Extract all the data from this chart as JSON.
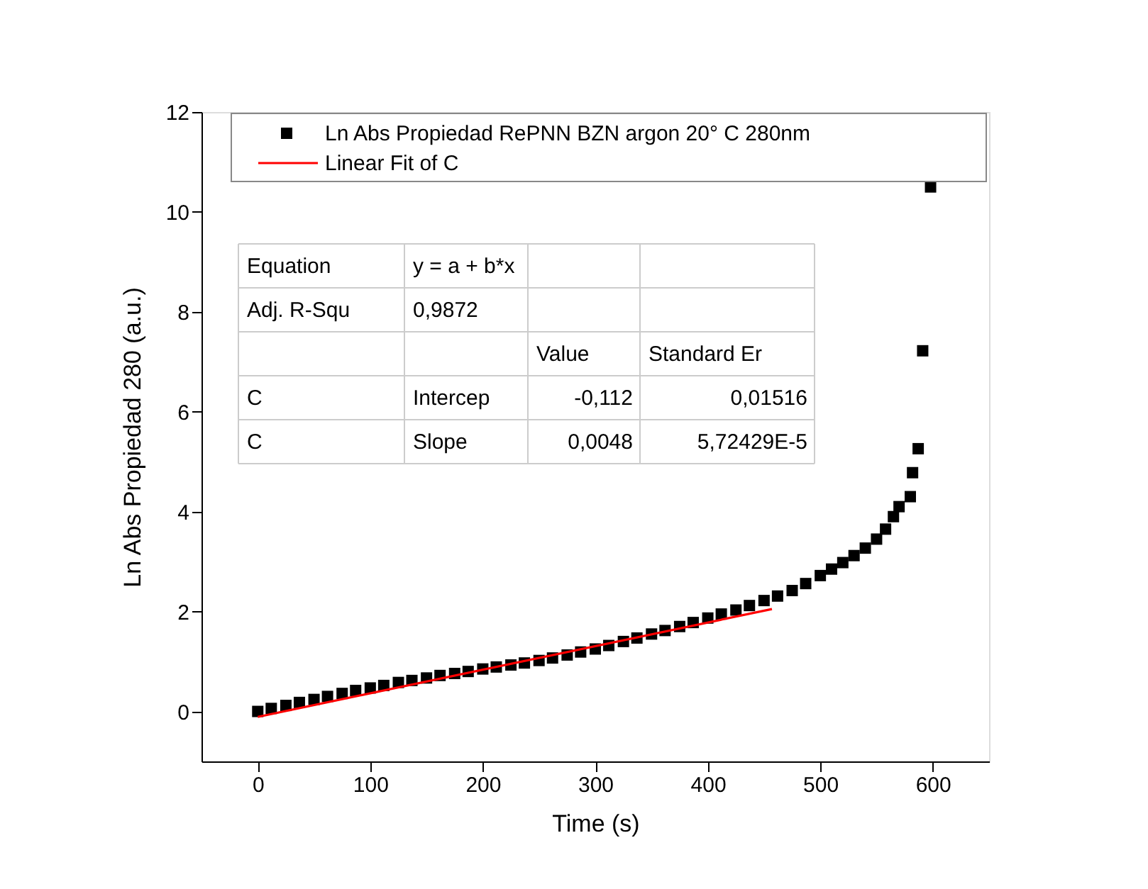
{
  "chart_data": {
    "type": "scatter",
    "xlabel": "Time (s)",
    "ylabel": "Ln Abs Propiedad 280 (a.u.)",
    "xlim": [
      -50,
      650
    ],
    "ylim": [
      -1,
      12
    ],
    "xticks": [
      0,
      100,
      200,
      300,
      400,
      500,
      600
    ],
    "yticks": [
      0,
      2,
      4,
      6,
      8,
      10,
      12
    ],
    "grid": false,
    "legend": "top",
    "series": [
      {
        "name": "Ln Abs Propiedad RePNN BZN argon 20° C 280nm",
        "color": "#000000",
        "marker": "square",
        "x": [
          0,
          12,
          25,
          37,
          50,
          62,
          75,
          87,
          100,
          112,
          125,
          137,
          150,
          162,
          175,
          187,
          200,
          212,
          225,
          237,
          250,
          262,
          275,
          287,
          300,
          312,
          325,
          337,
          350,
          362,
          375,
          387,
          400,
          412,
          425,
          437,
          450,
          462,
          475,
          487,
          500,
          510,
          520,
          530,
          540,
          550,
          558,
          565,
          570,
          580,
          582,
          587,
          591,
          598
        ],
        "values": [
          0,
          0.06,
          0.12,
          0.18,
          0.24,
          0.3,
          0.36,
          0.42,
          0.47,
          0.52,
          0.58,
          0.62,
          0.67,
          0.72,
          0.76,
          0.8,
          0.85,
          0.89,
          0.93,
          0.97,
          1.02,
          1.07,
          1.13,
          1.19,
          1.25,
          1.32,
          1.4,
          1.47,
          1.55,
          1.62,
          1.7,
          1.78,
          1.87,
          1.95,
          2.03,
          2.12,
          2.22,
          2.31,
          2.42,
          2.56,
          2.72,
          2.85,
          2.98,
          3.12,
          3.27,
          3.45,
          3.65,
          3.9,
          4.1,
          4.3,
          4.78,
          5.26,
          7.22,
          10.5
        ]
      },
      {
        "name": "Linear Fit of C",
        "color": "#ff0000",
        "type": "line",
        "line_style": "solid",
        "x": [
          0,
          457
        ],
        "values": [
          -0.11,
          2.05
        ]
      }
    ],
    "annotations": [
      "Equation",
      "y = a + b*x",
      "Adj. R-Squ",
      "0,9872",
      "Value",
      "Standard Er",
      "C",
      "Intercep",
      "-0,112",
      "0,01516",
      "C",
      "Slope",
      "0,0048",
      "5,72429E-5"
    ]
  }
}
